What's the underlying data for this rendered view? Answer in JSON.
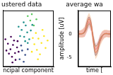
{
  "chart_data": [
    {
      "type": "scatter",
      "title": "ustered data",
      "x_label": "ncipal component",
      "xlim": [
        -4,
        6
      ],
      "ylim": [
        -4,
        5
      ],
      "grid": false,
      "tick_labels": false,
      "marker": "circle",
      "series": [
        {
          "color": "#440154",
          "x": [
            -2.5,
            -2,
            -1.6,
            -3,
            -2.2,
            -1.2,
            -2.8,
            -1.8,
            -3.3,
            -1.5,
            -2.4,
            -0.9,
            -3.5,
            -2.1,
            -1.1
          ],
          "values": [
            -1.2,
            -0.5,
            -1.8,
            -0.3,
            -2.4,
            -0.9,
            -1.9,
            0.2,
            -1.4,
            -2.9,
            0.8,
            -1.6,
            0.4,
            -3.3,
            0.1
          ]
        },
        {
          "color": "#3b528b",
          "x": [
            -0.2,
            0.4,
            -0.7,
            0.9,
            0.1,
            -0.4
          ],
          "values": [
            -1.4,
            -2.1,
            -2.8,
            -1.2,
            -3.2,
            -0.6
          ]
        },
        {
          "color": "#21918c",
          "x": [
            0.2,
            0.8,
            -0.3,
            1.2,
            0.5,
            -0.6,
            1.5,
            0.1,
            0.9,
            -0.9,
            1.8,
            0.4
          ],
          "values": [
            0.8,
            1.5,
            1.9,
            0.4,
            2.6,
            0.9,
            1.8,
            3.1,
            -0.2,
            2.4,
            2.7,
            0.1
          ]
        },
        {
          "color": "#5ec962",
          "x": [
            1.4,
            2.1,
            0.9,
            2.6,
            1.7
          ],
          "values": [
            3.4,
            2.6,
            4.1,
            3.6,
            4.4
          ]
        },
        {
          "color": "#fde725",
          "x": [
            2.2,
            3,
            2.7,
            3.6,
            1.9,
            3.3,
            4.1,
            2.5,
            4.4,
            1.7,
            3.8,
            2.9,
            4.8
          ],
          "values": [
            -0.4,
            0.5,
            -1.3,
            -0.2,
            0.6,
            -2,
            0.9,
            1.4,
            -1,
            -1.6,
            1.9,
            -2.8,
            0.2
          ]
        }
      ]
    },
    {
      "type": "line",
      "title": "average wa",
      "x_label": "time [",
      "y_label": "amplitude [uV]",
      "xlim": [
        0,
        1.5
      ],
      "ylim": [
        -7,
        5
      ],
      "yticks": [
        -5,
        0
      ],
      "grid": false,
      "tick_labels": "y",
      "x": [
        0,
        0.1,
        0.2,
        0.3,
        0.4,
        0.5,
        0.6,
        0.7,
        0.8,
        0.9,
        1,
        1.1,
        1.2,
        1.3,
        1.4,
        1.5
      ],
      "series": [
        {
          "color": "#e8883a",
          "values": [
            0,
            0,
            0.1,
            0.5,
            2,
            3.2,
            2,
            -1.5,
            -4,
            -3.2,
            -1.5,
            -0.5,
            0,
            0.1,
            0,
            0
          ],
          "upper": [
            0.8,
            0.8,
            1,
            1.6,
            3.5,
            4.5,
            3.4,
            0,
            -2.6,
            -1.9,
            -0.3,
            0.6,
            0.9,
            0.9,
            0.8,
            0.8
          ],
          "lower": [
            -0.8,
            -0.8,
            -0.8,
            -0.6,
            0.5,
            1.9,
            0.6,
            -3,
            -5.4,
            -4.5,
            -2.7,
            -1.6,
            -0.9,
            -0.7,
            -0.8,
            -0.8
          ]
        },
        {
          "color": "#d96fa0",
          "values": [
            0,
            0,
            0.1,
            0.4,
            1.6,
            2.6,
            1.6,
            -1.2,
            -3.3,
            -2.7,
            -1.2,
            -0.4,
            0,
            0.1,
            0,
            0
          ],
          "upper": [
            0.7,
            0.7,
            0.9,
            1.4,
            2.9,
            3.8,
            2.8,
            0.1,
            -2.1,
            -1.5,
            -0.2,
            0.5,
            0.8,
            0.8,
            0.7,
            0.7
          ],
          "lower": [
            -0.7,
            -0.7,
            -0.7,
            -0.6,
            0.3,
            1.4,
            0.4,
            -2.5,
            -4.5,
            -3.9,
            -2.2,
            -1.3,
            -0.8,
            -0.6,
            -0.7,
            -0.7
          ]
        },
        {
          "color": "#5aa05a",
          "values": [
            0,
            0,
            0,
            0.3,
            1.2,
            2.2,
            1.4,
            -0.8,
            -2.6,
            -2.2,
            -1,
            -0.3,
            0,
            0,
            0,
            0
          ]
        },
        {
          "color": "#7d7d9c",
          "values": [
            0,
            0,
            0.1,
            0.6,
            2.4,
            3.6,
            2.3,
            -1.8,
            -4.6,
            -3.6,
            -1.7,
            -0.6,
            0,
            0.1,
            0,
            0
          ]
        }
      ]
    }
  ]
}
